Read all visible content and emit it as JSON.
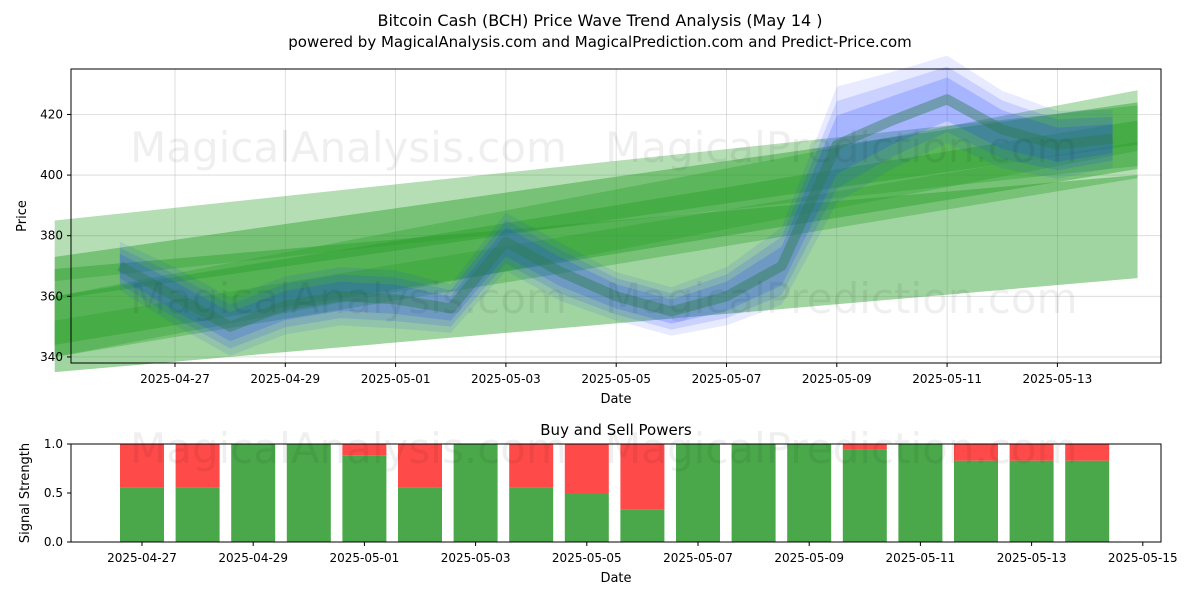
{
  "title": "Bitcoin Cash (BCH) Price Wave Trend Analysis (May 14 )",
  "subtitle": "powered by MagicalAnalysis.com and MagicalPrediction.com and Predict-Price.com",
  "watermarks": [
    "MagicalAnalysis.com",
    "MagicalPrediction.com"
  ],
  "colors": {
    "price_band": "#1f3fff",
    "trend_band": "#2ca02c",
    "buy": "#4aa84a",
    "sell": "#ff4a4a"
  },
  "chart_data": [
    {
      "type": "area",
      "xlabel": "Date",
      "ylabel": "Price",
      "ylim": [
        338,
        435
      ],
      "x_ticks": [
        "2025-04-27",
        "2025-04-29",
        "2025-05-01",
        "2025-05-03",
        "2025-05-05",
        "2025-05-07",
        "2025-05-09",
        "2025-05-11",
        "2025-05-13"
      ],
      "y_ticks": [
        340,
        360,
        380,
        400,
        420
      ],
      "grid": true,
      "price_band": {
        "x": [
          "2025-04-26",
          "2025-04-27",
          "2025-04-28",
          "2025-04-29",
          "2025-04-30",
          "2025-05-01",
          "2025-05-02",
          "2025-05-03",
          "2025-05-04",
          "2025-05-05",
          "2025-05-06",
          "2025-05-07",
          "2025-05-08",
          "2025-05-09",
          "2025-05-10",
          "2025-05-11",
          "2025-05-12",
          "2025-05-13",
          "2025-05-14"
        ],
        "center": [
          370,
          360,
          350,
          357,
          360,
          359,
          356,
          378,
          368,
          360,
          355,
          360,
          370,
          410,
          418,
          425,
          415,
          410,
          412
        ],
        "halfwidth": [
          5,
          6,
          6,
          6,
          6,
          6,
          5,
          6,
          6,
          5,
          5,
          6,
          8,
          12,
          10,
          9,
          8,
          7,
          6
        ]
      },
      "trend_bands": [
        {
          "start": [
            "2025-04-25",
            375
          ],
          "end": [
            "2025-05-14",
            413
          ],
          "halfwidth": 10
        },
        {
          "start": [
            "2025-04-25",
            366
          ],
          "end": [
            "2025-05-14",
            417
          ],
          "halfwidth": 7
        },
        {
          "start": [
            "2025-04-25",
            350
          ],
          "end": [
            "2025-05-14",
            418
          ],
          "halfwidth": 10
        },
        {
          "start": [
            "2025-04-25",
            352
          ],
          "end": [
            "2025-05-14",
            410
          ],
          "halfwidth": 8
        },
        {
          "start": [
            "2025-04-25",
            346
          ],
          "end": [
            "2025-05-14",
            405
          ],
          "halfwidth": 6
        },
        {
          "start": [
            "2025-04-25",
            352
          ],
          "end": [
            "2025-05-14",
            383
          ],
          "halfwidth": 17
        }
      ]
    },
    {
      "type": "bar",
      "title": "Buy and Sell Powers",
      "xlabel": "Date",
      "ylabel": "Signal Strength",
      "ylim": [
        0,
        1
      ],
      "y_ticks": [
        "0.0",
        "0.5",
        "1.0"
      ],
      "x_ticks": [
        "2025-04-27",
        "2025-04-29",
        "2025-05-01",
        "2025-05-03",
        "2025-05-05",
        "2025-05-07",
        "2025-05-09",
        "2025-05-11",
        "2025-05-13",
        "2025-05-15"
      ],
      "categories": [
        "2025-04-27",
        "2025-04-28",
        "2025-04-29",
        "2025-04-30",
        "2025-05-01",
        "2025-05-02",
        "2025-05-03",
        "2025-05-04",
        "2025-05-05",
        "2025-05-06",
        "2025-05-07",
        "2025-05-08",
        "2025-05-09",
        "2025-05-10",
        "2025-05-11",
        "2025-05-12",
        "2025-05-13",
        "2025-05-14"
      ],
      "series": [
        {
          "values": [
            0.56,
            0.56,
            1.0,
            1.0,
            0.88,
            0.56,
            1.0,
            0.56,
            0.5,
            0.33,
            1.0,
            1.0,
            1.0,
            0.94,
            1.0,
            0.83,
            0.83,
            0.83
          ]
        },
        {
          "values": [
            0.44,
            0.44,
            0.0,
            0.0,
            0.12,
            0.44,
            0.0,
            0.44,
            0.5,
            0.67,
            0.0,
            0.0,
            0.0,
            0.06,
            0.0,
            0.17,
            0.17,
            0.17
          ]
        }
      ]
    }
  ]
}
